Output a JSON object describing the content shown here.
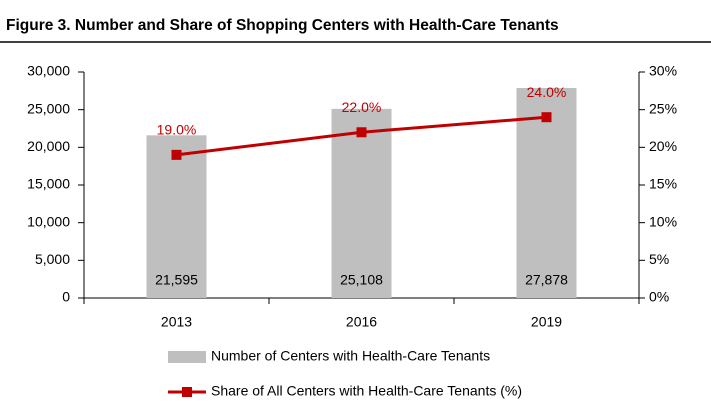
{
  "chart_data": {
    "type": "bar",
    "title": "Figure 3. Number and Share of Shopping Centers with Health-Care Tenants",
    "categories": [
      "2013",
      "2016",
      "2019"
    ],
    "series": [
      {
        "name": "Number of Centers with Health-Care Tenants",
        "type": "bar",
        "color": "#bfbfbf",
        "values": [
          21595,
          25108,
          27878
        ],
        "value_labels": [
          "21,595",
          "25,108",
          "27,878"
        ]
      },
      {
        "name": "Share of All Centers with Health-Care Tenants (%)",
        "type": "line",
        "axis": "y2",
        "color": "#c00000",
        "values": [
          19,
          22,
          24
        ],
        "value_labels": [
          "19.0%",
          "22.0%",
          "24.0%"
        ]
      }
    ],
    "ylim": [
      0,
      30000
    ],
    "yticks": [
      0,
      {
        "value": 5000,
        "label": "5,000"
      },
      {
        "value": 10000,
        "label": "10,000"
      },
      {
        "value": 15000,
        "label": "15,000"
      },
      {
        "value": 20000,
        "label": "20,000"
      },
      {
        "value": 25000,
        "label": "25,000"
      },
      {
        "value": 30000,
        "label": "30,000"
      }
    ],
    "y2lim": [
      0,
      30
    ],
    "y2ticks": [
      {
        "value": 0,
        "label": "0%"
      },
      {
        "value": 5,
        "label": "5%"
      },
      {
        "value": 10,
        "label": "10%"
      },
      {
        "value": 15,
        "label": "15%"
      },
      {
        "value": 20,
        "label": "20%"
      },
      {
        "value": 25,
        "label": "25%"
      },
      {
        "value": 30,
        "label": "30%"
      }
    ],
    "grid": false,
    "legend": "bottom"
  }
}
